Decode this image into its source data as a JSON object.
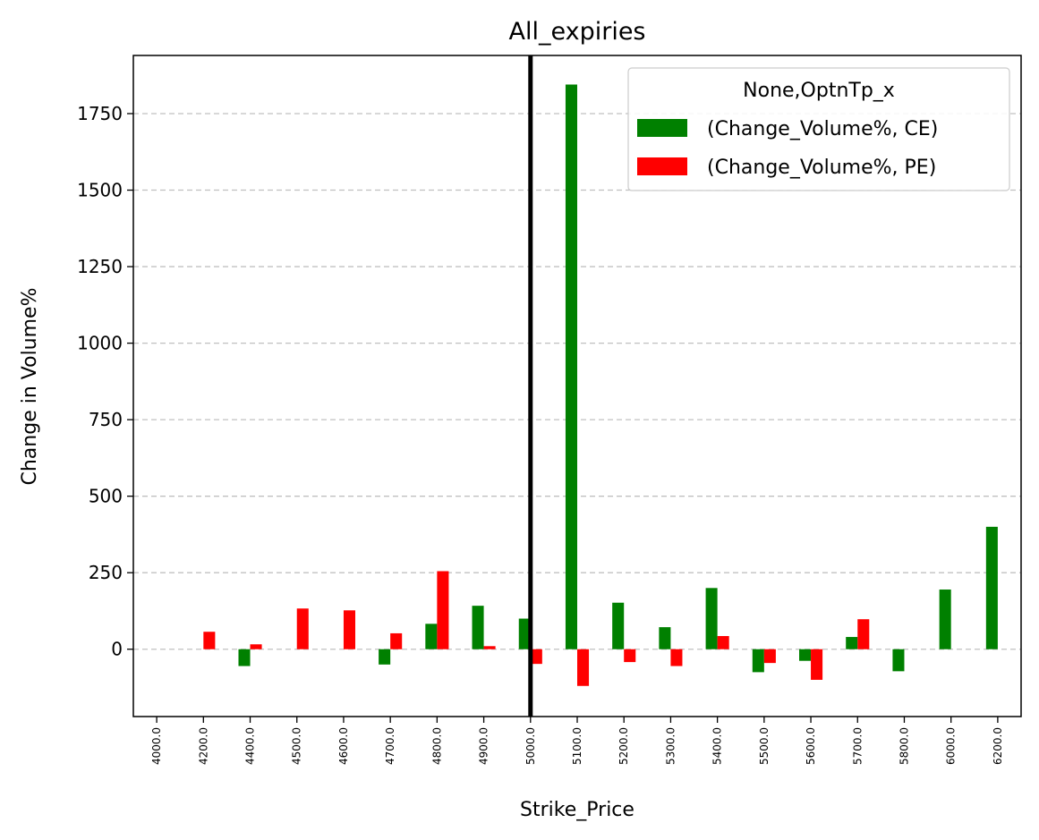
{
  "chart_data": {
    "type": "bar",
    "title": "All_expiries",
    "xlabel": "Strike_Price",
    "ylabel": "Change in Volume%",
    "categories": [
      "4000.0",
      "4200.0",
      "4400.0",
      "4500.0",
      "4600.0",
      "4700.0",
      "4800.0",
      "4900.0",
      "5000.0",
      "5100.0",
      "5200.0",
      "5300.0",
      "5400.0",
      "5500.0",
      "5600.0",
      "5700.0",
      "5800.0",
      "6000.0",
      "6200.0"
    ],
    "series": [
      {
        "name": "(Change_Volume%, CE)",
        "color": "#008000",
        "values": [
          null,
          null,
          -55,
          null,
          null,
          -50,
          83,
          142,
          100,
          1845,
          152,
          72,
          200,
          -75,
          -38,
          40,
          -72,
          195,
          400
        ]
      },
      {
        "name": "(Change_Volume%, PE)",
        "color": "#ff0000",
        "values": [
          null,
          57,
          16,
          133,
          127,
          52,
          255,
          10,
          -48,
          -120,
          -42,
          -55,
          43,
          -45,
          -100,
          98,
          null,
          null,
          null
        ]
      }
    ],
    "ylim": [
      -220,
      1940
    ],
    "yticks": [
      0,
      250,
      500,
      750,
      1000,
      1250,
      1500,
      1750
    ],
    "ytick_labels": [
      "0",
      "250",
      "500",
      "750",
      "1000",
      "1250",
      "1500",
      "1750"
    ],
    "grid": "y-dashed",
    "vline_at_category": "5000.0",
    "legend": {
      "title": "None,OptnTp_x",
      "placement": "top-right"
    }
  }
}
